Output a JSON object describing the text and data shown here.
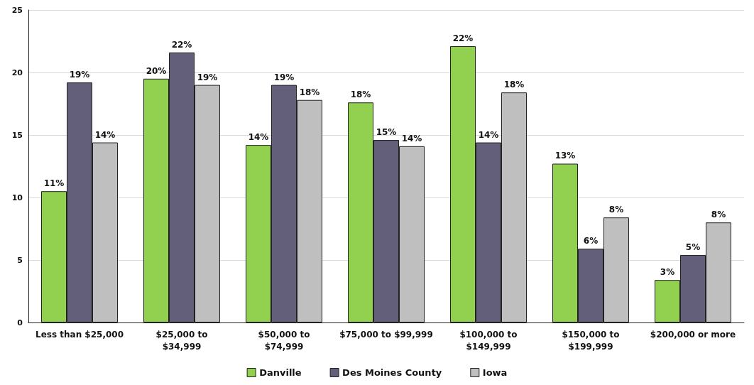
{
  "chart_data": {
    "type": "bar",
    "categories": [
      "Less than $25,000",
      "$25,000 to\n$34,999",
      "$50,000 to\n$74,999",
      "$75,000 to $99,999",
      "$100,000 to\n$149,999",
      "$150,000 to\n$199,999",
      "$200,000 or more"
    ],
    "series": [
      {
        "name": "Danville",
        "color": "#92d050",
        "values": [
          10.5,
          19.5,
          14.2,
          17.6,
          22.1,
          12.7,
          3.4
        ],
        "value_labels": [
          "11%",
          "20%",
          "14%",
          "18%",
          "22%",
          "13%",
          "3%"
        ]
      },
      {
        "name": "Des Moines County",
        "color": "#635e7a",
        "values": [
          19.2,
          21.6,
          19.0,
          14.6,
          14.4,
          5.9,
          5.4
        ],
        "value_labels": [
          "19%",
          "22%",
          "19%",
          "15%",
          "14%",
          "6%",
          "5%"
        ]
      },
      {
        "name": "Iowa",
        "color": "#bfbfbf",
        "values": [
          14.4,
          19.0,
          17.8,
          14.1,
          18.4,
          8.4,
          8.0
        ],
        "value_labels": [
          "14%",
          "19%",
          "18%",
          "14%",
          "18%",
          "8%",
          "8%"
        ]
      }
    ],
    "ylim": [
      0,
      25
    ],
    "yticks": [
      0,
      5,
      10,
      15,
      20,
      25
    ],
    "grid": "y",
    "legend": "bottom"
  }
}
